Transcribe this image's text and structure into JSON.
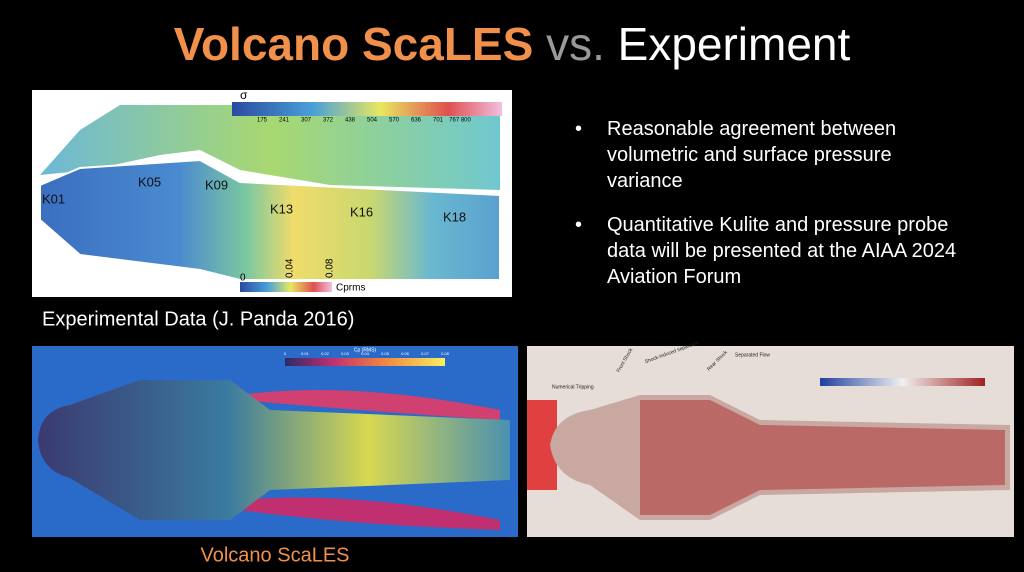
{
  "title": {
    "part1": "Volcano ScaLES",
    "part2": "vs.",
    "part3": "Experiment"
  },
  "bullets": [
    "Reasonable agreement between volumetric and surface pressure variance",
    "Quantitative Kulite and pressure probe data will be presented at the AIAA 2024 Aviation Forum"
  ],
  "experiment_figure": {
    "caption": "Experimental Data (J. Panda 2016)",
    "colorbar_symbol": "σ",
    "colorbar_ticks": [
      "175",
      "241",
      "307",
      "372",
      "438",
      "504",
      "570",
      "636",
      "701",
      "767 800"
    ],
    "sensors": [
      "K01",
      "K05",
      "K09",
      "K13",
      "K16",
      "K18"
    ],
    "cp_ticks": [
      "0",
      "0.04",
      "0.08"
    ],
    "cp_label": "Cprms"
  },
  "simulation_left": {
    "colorbar_label": "Cp (RMS)",
    "colorbar_ticks": [
      "0",
      "0.01",
      "0.02",
      "0.03",
      "0.04",
      "0.05",
      "0.06",
      "0.07",
      "0.08"
    ]
  },
  "simulation_right": {
    "annotations": [
      "Numerical Tripping",
      "Front Shock",
      "Shock-induced separation",
      "Rear Shock",
      "Separated Flow"
    ]
  },
  "caption": "Volcano ScaLES"
}
